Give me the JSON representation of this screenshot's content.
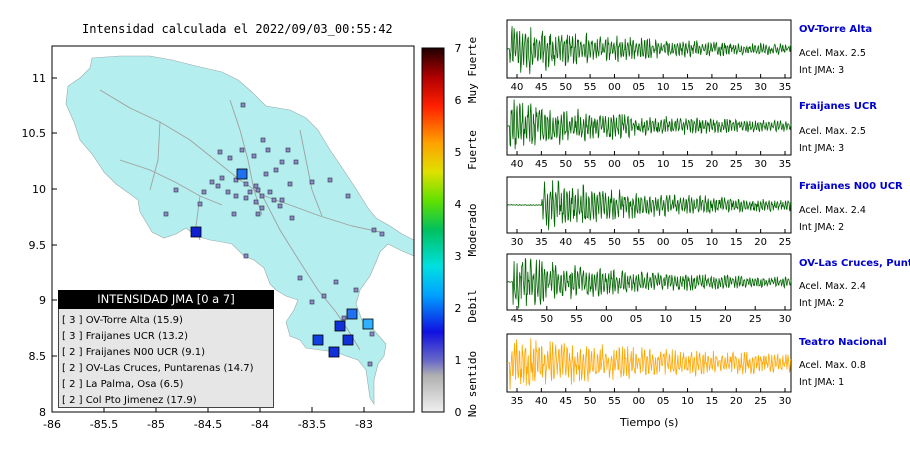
{
  "map": {
    "title": "Intensidad calculada el 2022/09/03_00:55:42",
    "lat_ticks": [
      "11",
      "10.5",
      "10",
      "9.5",
      "9",
      "8.5",
      "8"
    ],
    "lon_ticks": [
      "-86",
      "-85.5",
      "-85",
      "-84.5",
      "-84",
      "-83.5",
      "-83"
    ],
    "colors": {
      "land": "#b4eeee",
      "sea": "#ffffff",
      "roads": "#a0a0a0",
      "frame": "#000000"
    }
  },
  "colorbar": {
    "ticks": [
      "0",
      "1",
      "2",
      "3",
      "4",
      "5",
      "6",
      "7"
    ],
    "category_labels": [
      "No sentido",
      "Debil",
      "Moderado",
      "Fuerte",
      "Muy Fuerte"
    ],
    "min": 0,
    "max": 7
  },
  "legend": {
    "title": "INTENSIDAD JMA [0 a 7]",
    "items": [
      "[ 3 ]  OV-Torre Alta (15.9)",
      "[ 3 ]  Fraijanes UCR (13.2)",
      "[ 2 ]  Fraijanes N00 UCR (9.1)",
      "[ 2 ]  OV-Las Cruces, Puntarenas (14.7)",
      "[ 2 ]  La Palma, Osa (6.5)",
      "[ 2 ]  Col Pto Jimenez (17.9)"
    ]
  },
  "stations": [
    {
      "name": "OV-Torre Alta",
      "acc": "Acel. Max. 2.5",
      "jma": "Int JMA: 3",
      "ticks": [
        "40",
        "45",
        "50",
        "55",
        "00",
        "05",
        "10",
        "15",
        "20",
        "25",
        "30",
        "35"
      ],
      "color": "#006400"
    },
    {
      "name": "Fraijanes UCR",
      "acc": "Acel. Max. 2.5",
      "jma": "Int JMA: 3",
      "ticks": [
        "40",
        "45",
        "50",
        "55",
        "00",
        "05",
        "10",
        "15",
        "20",
        "25",
        "30",
        "35"
      ],
      "color": "#006400"
    },
    {
      "name": "Fraijanes N00 UCR",
      "acc": "Acel. Max. 2.4",
      "jma": "Int JMA: 2",
      "ticks": [
        "30",
        "35",
        "40",
        "45",
        "50",
        "55",
        "00",
        "05",
        "10",
        "15",
        "20",
        "25"
      ],
      "color": "#006400"
    },
    {
      "name": "OV-Las Cruces, Puntar",
      "acc": "Acel. Max. 2.4",
      "jma": "Int JMA: 2",
      "ticks": [
        "45",
        "50",
        "55",
        "00",
        "05",
        "10",
        "15",
        "20",
        "25",
        "30"
      ],
      "color": "#006400"
    },
    {
      "name": "Teatro Nacional",
      "acc": "Acel. Max. 0.8",
      "jma": "Int JMA: 1",
      "ticks": [
        "35",
        "40",
        "45",
        "50",
        "55",
        "00",
        "05",
        "10",
        "15",
        "20",
        "25",
        "30"
      ],
      "color": "#ffa500"
    }
  ],
  "time_label": "Tiempo (s)"
}
